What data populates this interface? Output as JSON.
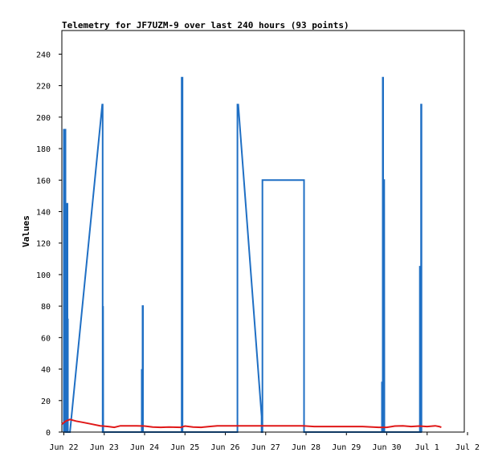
{
  "chart_data": {
    "type": "line",
    "title": "Telemetry for JF7UZM-9 over last 240 hours (93 points)",
    "xlabel": "",
    "ylabel": "Values",
    "ylim": [
      0,
      255
    ],
    "yticks": [
      0,
      20,
      40,
      60,
      80,
      100,
      120,
      140,
      160,
      180,
      200,
      220,
      240
    ],
    "x_unit": "days since Jun 22",
    "xlim": [
      -0.05,
      9.92
    ],
    "xticks": [
      {
        "x": 0,
        "label": "Jun 22"
      },
      {
        "x": 1,
        "label": "Jun 23"
      },
      {
        "x": 2,
        "label": "Jun 24"
      },
      {
        "x": 3,
        "label": "Jun 25"
      },
      {
        "x": 4,
        "label": "Jun 26"
      },
      {
        "x": 5,
        "label": "Jun 27"
      },
      {
        "x": 6,
        "label": "Jun 28"
      },
      {
        "x": 7,
        "label": "Jun 29"
      },
      {
        "x": 8,
        "label": "Jun 30"
      },
      {
        "x": 9,
        "label": "Jul 1"
      },
      {
        "x": 10,
        "label": "Jul 2"
      }
    ],
    "grid": false,
    "series": [
      {
        "name": "",
        "color": "#1f6fc4",
        "points": [
          [
            0.0,
            0
          ],
          [
            0.0,
            192
          ],
          [
            0.04,
            192
          ],
          [
            0.04,
            0
          ],
          [
            0.08,
            0
          ],
          [
            0.08,
            145
          ],
          [
            0.09,
            145
          ],
          [
            0.09,
            0
          ],
          [
            0.1,
            72
          ],
          [
            0.1,
            0
          ],
          [
            0.15,
            0
          ],
          [
            0.95,
            208
          ],
          [
            0.96,
            208
          ],
          [
            0.96,
            0
          ],
          [
            0.97,
            0
          ],
          [
            0.97,
            80
          ],
          [
            0.975,
            0
          ],
          [
            1.93,
            0
          ],
          [
            1.93,
            40
          ],
          [
            1.935,
            0
          ],
          [
            1.95,
            0
          ],
          [
            1.95,
            80
          ],
          [
            1.96,
            80
          ],
          [
            1.96,
            0
          ],
          [
            2.92,
            0
          ],
          [
            2.92,
            225
          ],
          [
            2.94,
            225
          ],
          [
            2.94,
            0
          ],
          [
            4.3,
            0
          ],
          [
            4.3,
            208
          ],
          [
            4.32,
            208
          ],
          [
            4.9,
            10
          ],
          [
            4.9,
            0
          ],
          [
            4.92,
            0
          ],
          [
            4.92,
            160
          ],
          [
            5.95,
            160
          ],
          [
            5.95,
            0
          ],
          [
            7.88,
            0
          ],
          [
            7.88,
            32
          ],
          [
            7.89,
            0
          ],
          [
            7.9,
            0
          ],
          [
            7.9,
            225
          ],
          [
            7.91,
            225
          ],
          [
            7.91,
            0
          ],
          [
            7.93,
            0
          ],
          [
            7.93,
            160
          ],
          [
            7.935,
            160
          ],
          [
            7.94,
            18
          ],
          [
            7.94,
            0
          ],
          [
            8.82,
            0
          ],
          [
            8.82,
            105
          ],
          [
            8.83,
            105
          ],
          [
            8.83,
            0
          ],
          [
            8.85,
            0
          ],
          [
            8.85,
            208
          ],
          [
            8.86,
            208
          ],
          [
            8.86,
            0
          ]
        ]
      },
      {
        "name": "",
        "color": "#e01818",
        "points": [
          [
            -0.05,
            5
          ],
          [
            0.05,
            7
          ],
          [
            0.15,
            8
          ],
          [
            0.3,
            7
          ],
          [
            0.5,
            6
          ],
          [
            0.7,
            5
          ],
          [
            0.9,
            4
          ],
          [
            1.1,
            3.5
          ],
          [
            1.25,
            3
          ],
          [
            1.4,
            4
          ],
          [
            1.6,
            4
          ],
          [
            1.8,
            4
          ],
          [
            2.0,
            3.8
          ],
          [
            2.2,
            3.2
          ],
          [
            2.4,
            3
          ],
          [
            2.6,
            3.2
          ],
          [
            2.9,
            3
          ],
          [
            3.0,
            3.8
          ],
          [
            3.2,
            3.2
          ],
          [
            3.4,
            3
          ],
          [
            3.6,
            3.5
          ],
          [
            3.8,
            4
          ],
          [
            4.0,
            4
          ],
          [
            4.3,
            4
          ],
          [
            4.6,
            4
          ],
          [
            5.0,
            4
          ],
          [
            5.4,
            4
          ],
          [
            5.9,
            4
          ],
          [
            6.2,
            3.5
          ],
          [
            6.6,
            3.5
          ],
          [
            7.0,
            3.5
          ],
          [
            7.4,
            3.5
          ],
          [
            7.8,
            3
          ],
          [
            8.0,
            3
          ],
          [
            8.2,
            3.8
          ],
          [
            8.4,
            4
          ],
          [
            8.6,
            3.5
          ],
          [
            8.8,
            3.8
          ],
          [
            9.0,
            3.5
          ],
          [
            9.2,
            4
          ],
          [
            9.3,
            3.5
          ],
          [
            9.35,
            3
          ]
        ]
      },
      {
        "name": "",
        "color": "#000000",
        "points": [
          [
            -0.05,
            0
          ],
          [
            9.35,
            0
          ]
        ]
      }
    ]
  }
}
